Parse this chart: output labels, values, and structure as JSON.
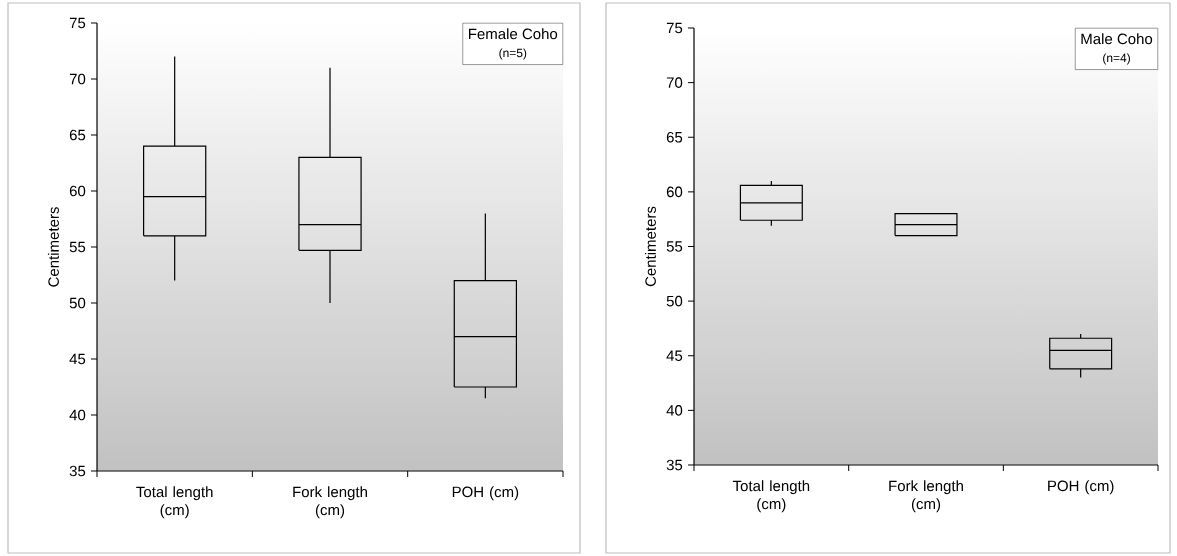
{
  "chart_data": [
    {
      "type": "box",
      "title": "Female Coho",
      "subtitle": "(n=5)",
      "ylabel": "Centimeters",
      "categories": [
        "Total length (cm)",
        "Fork length (cm)",
        "POH (cm)"
      ],
      "color": "#000000",
      "ylim": [
        35,
        75
      ],
      "yticks": [
        35,
        40,
        45,
        50,
        55,
        60,
        65,
        70,
        75
      ],
      "boxes": [
        {
          "low": 52,
          "q1": 56,
          "median": 59.5,
          "q3": 64,
          "high": 72
        },
        {
          "low": 50,
          "q1": 54.7,
          "median": 57,
          "q3": 63,
          "high": 71
        },
        {
          "low": 41.5,
          "q1": 42.5,
          "median": 47,
          "q3": 52,
          "high": 58
        }
      ]
    },
    {
      "type": "box",
      "title": "Male Coho",
      "subtitle": "(n=4)",
      "ylabel": "Centimeters",
      "categories": [
        "Total length (cm)",
        "Fork length (cm)",
        "POH (cm)"
      ],
      "color": "#000000",
      "ylim": [
        35,
        75
      ],
      "yticks": [
        35,
        40,
        45,
        50,
        55,
        60,
        65,
        70,
        75
      ],
      "boxes": [
        {
          "low": 56.9,
          "q1": 57.4,
          "median": 59,
          "q3": 60.6,
          "high": 61
        },
        {
          "low": 56,
          "q1": 56,
          "median": 57,
          "q3": 58,
          "high": 58
        },
        {
          "low": 43,
          "q1": 43.8,
          "median": 45.5,
          "q3": 46.6,
          "high": 47
        }
      ]
    }
  ]
}
